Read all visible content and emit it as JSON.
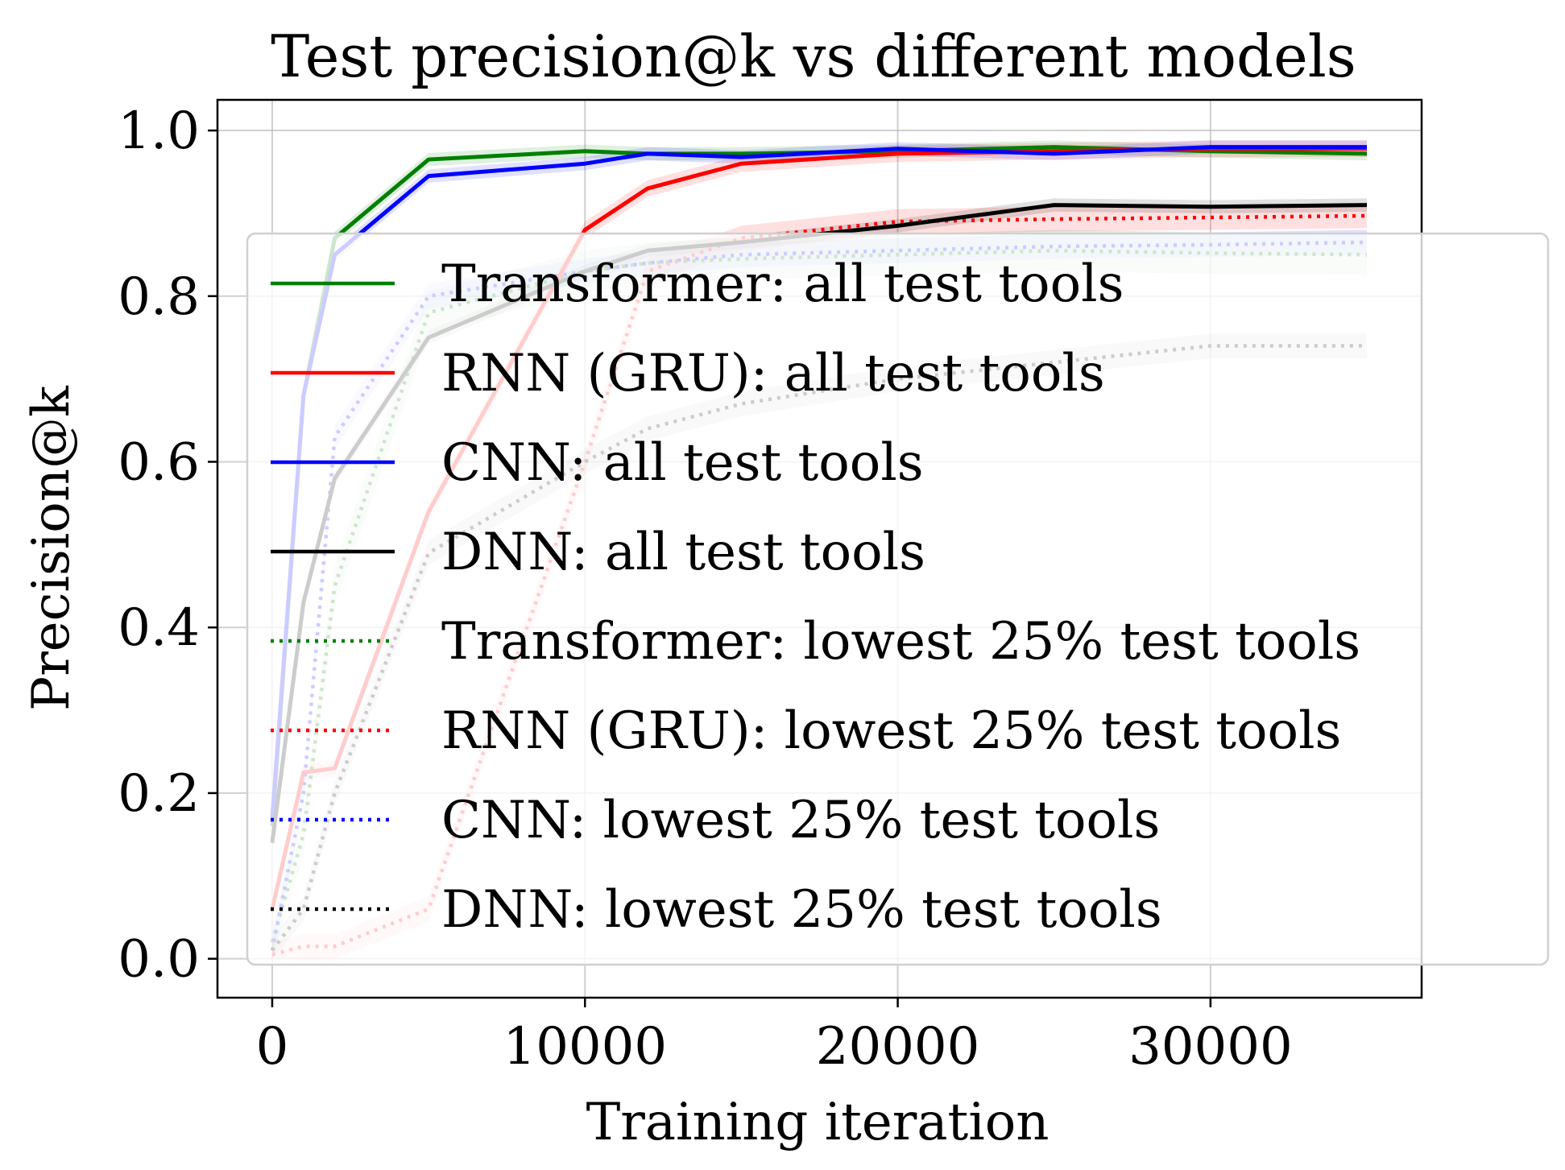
{
  "chart_data": {
    "type": "line",
    "title": "Test precision@k vs different models",
    "xlabel": "Training iteration",
    "ylabel": "Precision@k",
    "xlim": [
      -1750,
      36750
    ],
    "ylim": [
      -0.047,
      1.037
    ],
    "xticks": [
      0,
      10000,
      20000,
      30000
    ],
    "xtick_labels": [
      "0",
      "10000",
      "20000",
      "30000"
    ],
    "yticks": [
      0.0,
      0.2,
      0.4,
      0.6,
      0.8,
      1.0
    ],
    "ytick_labels": [
      "0.0",
      "0.2",
      "0.4",
      "0.6",
      "0.8",
      "1.0"
    ],
    "grid": true,
    "legend_position": "right",
    "x": [
      0,
      1000,
      2000,
      5000,
      10000,
      12000,
      15000,
      20000,
      25000,
      30000,
      35000
    ],
    "series": [
      {
        "name": "Transformer: all test tools",
        "color": "#008000",
        "style": "solid",
        "values": [
          0.16,
          0.68,
          0.87,
          0.965,
          0.975,
          0.972,
          0.972,
          0.975,
          0.98,
          0.975,
          0.972
        ],
        "band": 0.008
      },
      {
        "name": "RNN (GRU): all test tools",
        "color": "#ff0000",
        "style": "solid",
        "values": [
          0.06,
          0.225,
          0.23,
          0.54,
          0.88,
          0.93,
          0.96,
          0.972,
          0.975,
          0.978,
          0.978
        ],
        "band": 0.01
      },
      {
        "name": "CNN: all test tools",
        "color": "#0000ff",
        "style": "solid",
        "values": [
          0.17,
          0.68,
          0.85,
          0.945,
          0.96,
          0.972,
          0.968,
          0.978,
          0.972,
          0.98,
          0.98
        ],
        "band": 0.008
      },
      {
        "name": "DNN: all test tools",
        "color": "#000000",
        "style": "solid",
        "values": [
          0.14,
          0.43,
          0.58,
          0.75,
          0.83,
          0.855,
          0.865,
          0.885,
          0.91,
          0.908,
          0.91
        ],
        "band": 0.008
      },
      {
        "name": "Transformer: lowest 25% test tools",
        "color": "#008000",
        "style": "dotted",
        "values": [
          0.02,
          0.15,
          0.45,
          0.78,
          0.83,
          0.84,
          0.845,
          0.85,
          0.855,
          0.852,
          0.85
        ],
        "band": 0.025
      },
      {
        "name": "RNN (GRU): lowest 25% test tools",
        "color": "#ff0000",
        "style": "dotted",
        "values": [
          0.005,
          0.015,
          0.015,
          0.06,
          0.6,
          0.83,
          0.87,
          0.89,
          0.893,
          0.895,
          0.897
        ],
        "band": 0.015
      },
      {
        "name": "CNN: lowest 25% test tools",
        "color": "#0000ff",
        "style": "dotted",
        "values": [
          0.01,
          0.2,
          0.63,
          0.8,
          0.83,
          0.84,
          0.85,
          0.855,
          0.86,
          0.862,
          0.865
        ],
        "band": 0.015
      },
      {
        "name": "DNN: lowest 25% test tools",
        "color": "#000000",
        "style": "dotted",
        "values": [
          0.01,
          0.06,
          0.2,
          0.49,
          0.6,
          0.64,
          0.67,
          0.7,
          0.72,
          0.74,
          0.74
        ],
        "band": 0.015
      }
    ]
  }
}
